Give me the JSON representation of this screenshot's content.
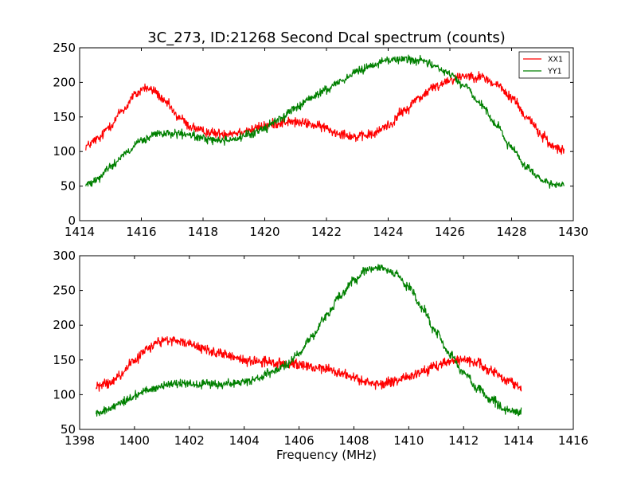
{
  "chart_data": [
    {
      "type": "line",
      "title": "3C_273, ID:21268 Second Dcal spectrum (counts)",
      "xlabel": "",
      "ylabel": "",
      "xlim": [
        1414,
        1430
      ],
      "ylim": [
        0,
        250
      ],
      "xticks": [
        "1414",
        "1416",
        "1418",
        "1420",
        "1422",
        "1424",
        "1426",
        "1428",
        "1430"
      ],
      "yticks": [
        "0",
        "50",
        "100",
        "150",
        "200",
        "250"
      ],
      "grid": false,
      "legend": "top-right",
      "x_start": 1414.2,
      "x_end": 1429.7,
      "series": [
        {
          "name": "XX1",
          "color": "#ff0000",
          "noise": 7,
          "points": [
            [
              1414.2,
              108
            ],
            [
              1414.6,
              118
            ],
            [
              1415.0,
              138
            ],
            [
              1415.4,
              160
            ],
            [
              1415.8,
              182
            ],
            [
              1416.1,
              192
            ],
            [
              1416.4,
              188
            ],
            [
              1416.8,
              170
            ],
            [
              1417.2,
              150
            ],
            [
              1417.6,
              136
            ],
            [
              1418.0,
              129
            ],
            [
              1418.5,
              126
            ],
            [
              1419.0,
              127
            ],
            [
              1419.5,
              131
            ],
            [
              1420.0,
              137
            ],
            [
              1420.4,
              141
            ],
            [
              1420.8,
              143
            ],
            [
              1421.3,
              141
            ],
            [
              1421.8,
              136
            ],
            [
              1422.4,
              127
            ],
            [
              1423.0,
              121
            ],
            [
              1423.5,
              125
            ],
            [
              1424.0,
              138
            ],
            [
              1424.5,
              158
            ],
            [
              1425.0,
              178
            ],
            [
              1425.5,
              193
            ],
            [
              1426.0,
              204
            ],
            [
              1426.5,
              210
            ],
            [
              1427.0,
              208
            ],
            [
              1427.5,
              197
            ],
            [
              1428.0,
              178
            ],
            [
              1428.5,
              150
            ],
            [
              1429.0,
              123
            ],
            [
              1429.3,
              108
            ],
            [
              1429.7,
              104
            ]
          ]
        },
        {
          "name": "YY1",
          "color": "#008000",
          "noise": 6,
          "points": [
            [
              1414.2,
              52
            ],
            [
              1414.6,
              62
            ],
            [
              1415.0,
              78
            ],
            [
              1415.5,
              98
            ],
            [
              1416.0,
              115
            ],
            [
              1416.5,
              125
            ],
            [
              1417.0,
              126
            ],
            [
              1417.5,
              124
            ],
            [
              1418.0,
              119
            ],
            [
              1418.5,
              116
            ],
            [
              1419.0,
              118
            ],
            [
              1419.5,
              124
            ],
            [
              1420.0,
              134
            ],
            [
              1420.5,
              148
            ],
            [
              1421.0,
              163
            ],
            [
              1421.5,
              177
            ],
            [
              1422.0,
              190
            ],
            [
              1422.5,
              203
            ],
            [
              1423.0,
              216
            ],
            [
              1423.5,
              226
            ],
            [
              1424.0,
              232
            ],
            [
              1424.5,
              234
            ],
            [
              1425.0,
              232
            ],
            [
              1425.5,
              224
            ],
            [
              1426.0,
              212
            ],
            [
              1426.5,
              194
            ],
            [
              1427.0,
              168
            ],
            [
              1427.5,
              138
            ],
            [
              1428.0,
              105
            ],
            [
              1428.5,
              77
            ],
            [
              1429.0,
              58
            ],
            [
              1429.3,
              51
            ],
            [
              1429.7,
              50
            ]
          ]
        }
      ]
    },
    {
      "type": "line",
      "title": "",
      "xlabel": "Frequency (MHz)",
      "ylabel": "",
      "xlim": [
        1398,
        1416
      ],
      "ylim": [
        50,
        300
      ],
      "xticks": [
        "1398",
        "1400",
        "1402",
        "1404",
        "1406",
        "1408",
        "1410",
        "1412",
        "1414",
        "1416"
      ],
      "yticks": [
        "50",
        "100",
        "150",
        "200",
        "250",
        "300"
      ],
      "grid": false,
      "legend": "none",
      "x_start": 1398.6,
      "x_end": 1414.1,
      "series": [
        {
          "name": "XX1",
          "color": "#ff0000",
          "noise": 7,
          "points": [
            [
              1398.6,
              112
            ],
            [
              1399.0,
              115
            ],
            [
              1399.5,
              128
            ],
            [
              1400.0,
              150
            ],
            [
              1400.5,
              168
            ],
            [
              1401.0,
              177
            ],
            [
              1401.5,
              178
            ],
            [
              1402.0,
              173
            ],
            [
              1402.5,
              166
            ],
            [
              1403.0,
              160
            ],
            [
              1403.5,
              155
            ],
            [
              1404.0,
              150
            ],
            [
              1404.5,
              148
            ],
            [
              1405.0,
              146
            ],
            [
              1405.5,
              145
            ],
            [
              1406.0,
              142
            ],
            [
              1406.5,
              140
            ],
            [
              1407.0,
              137
            ],
            [
              1407.5,
              132
            ],
            [
              1408.0,
              124
            ],
            [
              1408.5,
              117
            ],
            [
              1409.0,
              116
            ],
            [
              1409.5,
              119
            ],
            [
              1410.0,
              126
            ],
            [
              1410.5,
              133
            ],
            [
              1411.0,
              141
            ],
            [
              1411.5,
              148
            ],
            [
              1412.0,
              150
            ],
            [
              1412.5,
              145
            ],
            [
              1413.0,
              134
            ],
            [
              1413.5,
              122
            ],
            [
              1414.1,
              110
            ]
          ]
        },
        {
          "name": "YY1",
          "color": "#008000",
          "noise": 6,
          "points": [
            [
              1398.6,
              72
            ],
            [
              1399.0,
              78
            ],
            [
              1399.5,
              88
            ],
            [
              1400.0,
              98
            ],
            [
              1400.5,
              107
            ],
            [
              1401.0,
              113
            ],
            [
              1401.5,
              115
            ],
            [
              1402.0,
              116
            ],
            [
              1402.5,
              116
            ],
            [
              1403.0,
              115
            ],
            [
              1403.5,
              116
            ],
            [
              1404.0,
              118
            ],
            [
              1404.5,
              124
            ],
            [
              1405.0,
              132
            ],
            [
              1405.5,
              142
            ],
            [
              1406.0,
              160
            ],
            [
              1406.5,
              185
            ],
            [
              1407.0,
              215
            ],
            [
              1407.5,
              242
            ],
            [
              1408.0,
              265
            ],
            [
              1408.5,
              280
            ],
            [
              1409.0,
              283
            ],
            [
              1409.5,
              275
            ],
            [
              1410.0,
              255
            ],
            [
              1410.5,
              225
            ],
            [
              1411.0,
              190
            ],
            [
              1411.5,
              158
            ],
            [
              1412.0,
              131
            ],
            [
              1412.5,
              110
            ],
            [
              1413.0,
              93
            ],
            [
              1413.5,
              80
            ],
            [
              1414.1,
              74
            ]
          ]
        }
      ]
    }
  ]
}
